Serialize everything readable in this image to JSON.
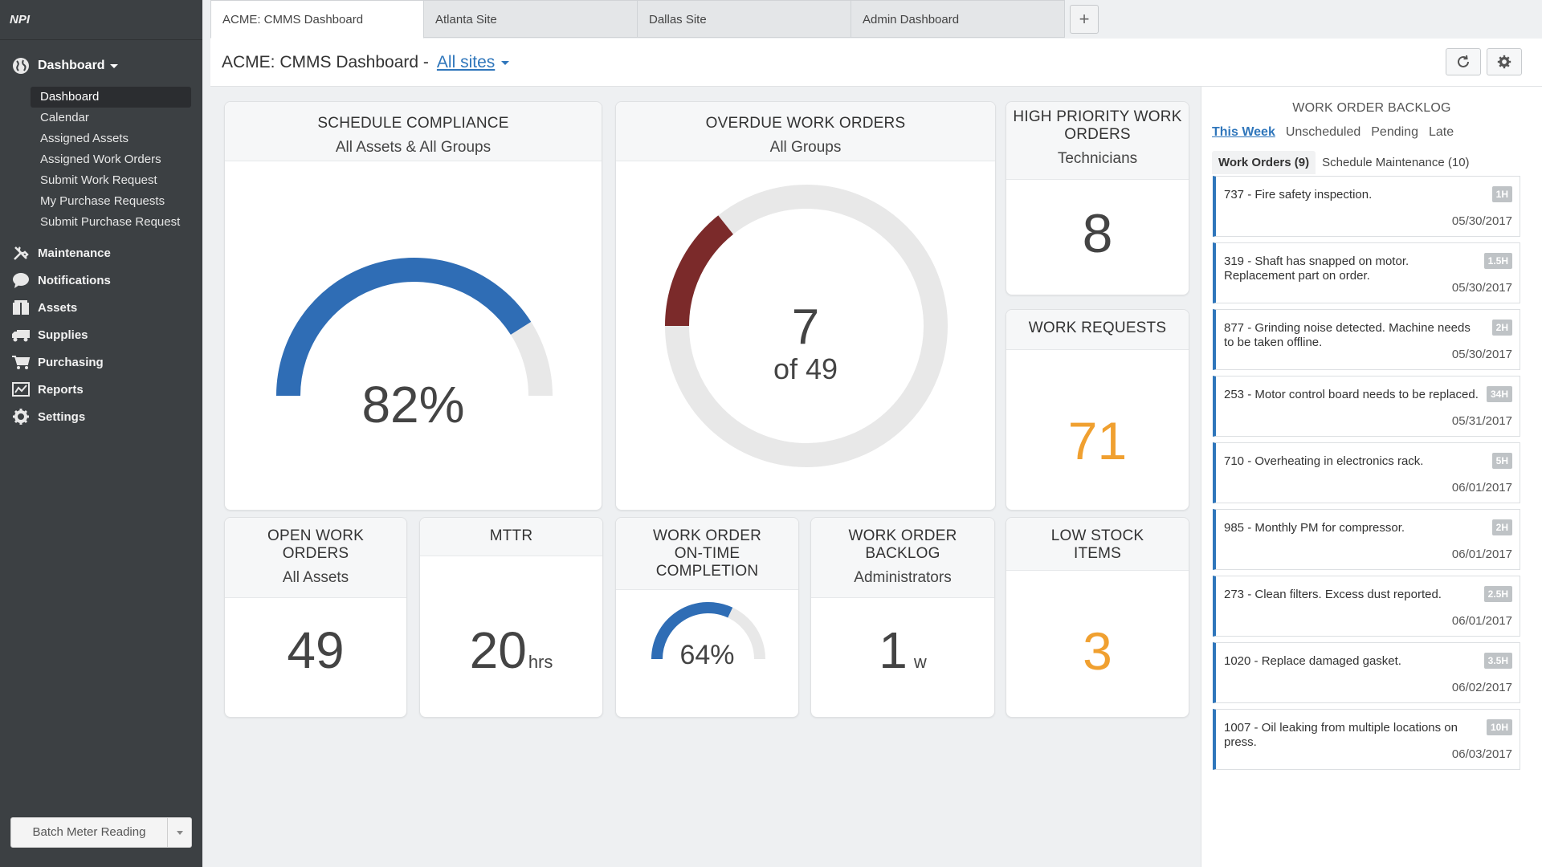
{
  "sidebar": {
    "logo": "NPI",
    "dashboard_label": "Dashboard",
    "sub_items": [
      "Dashboard",
      "Calendar",
      "Assigned Assets",
      "Assigned Work Orders",
      "Submit Work Request",
      "My Purchase Requests",
      "Submit Purchase Request"
    ],
    "nav": [
      {
        "label": "Maintenance",
        "icon": "wrench-icon"
      },
      {
        "label": "Notifications",
        "icon": "chat-bubble-icon"
      },
      {
        "label": "Assets",
        "icon": "boxes-icon"
      },
      {
        "label": "Supplies",
        "icon": "truck-icon"
      },
      {
        "label": "Purchasing",
        "icon": "cart-icon"
      },
      {
        "label": "Reports",
        "icon": "chart-icon"
      },
      {
        "label": "Settings",
        "icon": "gear-icon"
      }
    ],
    "batch_button": "Batch Meter Reading"
  },
  "tabs": [
    "ACME: CMMS Dashboard",
    "Atlanta Site",
    "Dallas Site",
    "Admin Dashboard"
  ],
  "tab_add": "+",
  "header": {
    "title": "ACME: CMMS Dashboard -",
    "sites": "All sites"
  },
  "cards": {
    "schedule": {
      "title": "SCHEDULE COMPLIANCE",
      "subtitle": "All Assets & All Groups",
      "value": "82%",
      "fraction": 0.82
    },
    "overdue": {
      "title": "OVERDUE WORK ORDERS",
      "subtitle": "All Groups",
      "value": "7",
      "of": "of 49",
      "count": 7,
      "total": 49
    },
    "high_priority": {
      "title": "HIGH PRIORITY WORK ORDERS",
      "subtitle": "Technicians",
      "value": "8"
    },
    "work_requests": {
      "title": "WORK REQUESTS",
      "value": "71"
    },
    "open_wo": {
      "title": "OPEN WORK ORDERS",
      "subtitle": "All Assets",
      "value": "49"
    },
    "mttr": {
      "title": "MTTR",
      "value": "20",
      "unit": "hrs"
    },
    "ontime": {
      "title": "WORK ORDER ON-TIME COMPLETION",
      "value": "64%",
      "fraction": 0.64
    },
    "backlog": {
      "title": "WORK ORDER BACKLOG",
      "subtitle": "Administrators",
      "value": "1",
      "unit": "w"
    },
    "low_stock": {
      "title": "LOW STOCK ITEMS",
      "value": "3"
    }
  },
  "colors": {
    "blue": "#2f6db5",
    "red": "#7b2a2a",
    "orange": "#f0a030",
    "track": "#e8e8e8"
  },
  "backlog_panel": {
    "title": "WORK ORDER BACKLOG",
    "filters": [
      "This Week",
      "Unscheduled",
      "Pending",
      "Late"
    ],
    "subtabs": [
      "Work Orders (9)",
      "Schedule Maintenance (10)"
    ],
    "items": [
      {
        "desc": "737 - Fire safety inspection.",
        "badge": "1H",
        "date": "05/30/2017"
      },
      {
        "desc": "319 - Shaft has snapped on motor. Replacement part on order.",
        "badge": "1.5H",
        "date": "05/30/2017"
      },
      {
        "desc": "877 - Grinding noise detected. Machine needs to be taken offline.",
        "badge": "2H",
        "date": "05/30/2017"
      },
      {
        "desc": "253 - Motor control board needs to be replaced.",
        "badge": "34H",
        "date": "05/31/2017"
      },
      {
        "desc": "710 - Overheating in electronics rack.",
        "badge": "5H",
        "date": "06/01/2017"
      },
      {
        "desc": "985 - Monthly PM for compressor.",
        "badge": "2H",
        "date": "06/01/2017"
      },
      {
        "desc": "273 - Clean filters. Excess dust reported.",
        "badge": "2.5H",
        "date": "06/01/2017"
      },
      {
        "desc": "1020 - Replace damaged gasket.",
        "badge": "3.5H",
        "date": "06/02/2017"
      },
      {
        "desc": "1007 - Oil leaking from multiple locations on press.",
        "badge": "10H",
        "date": "06/03/2017"
      }
    ]
  }
}
